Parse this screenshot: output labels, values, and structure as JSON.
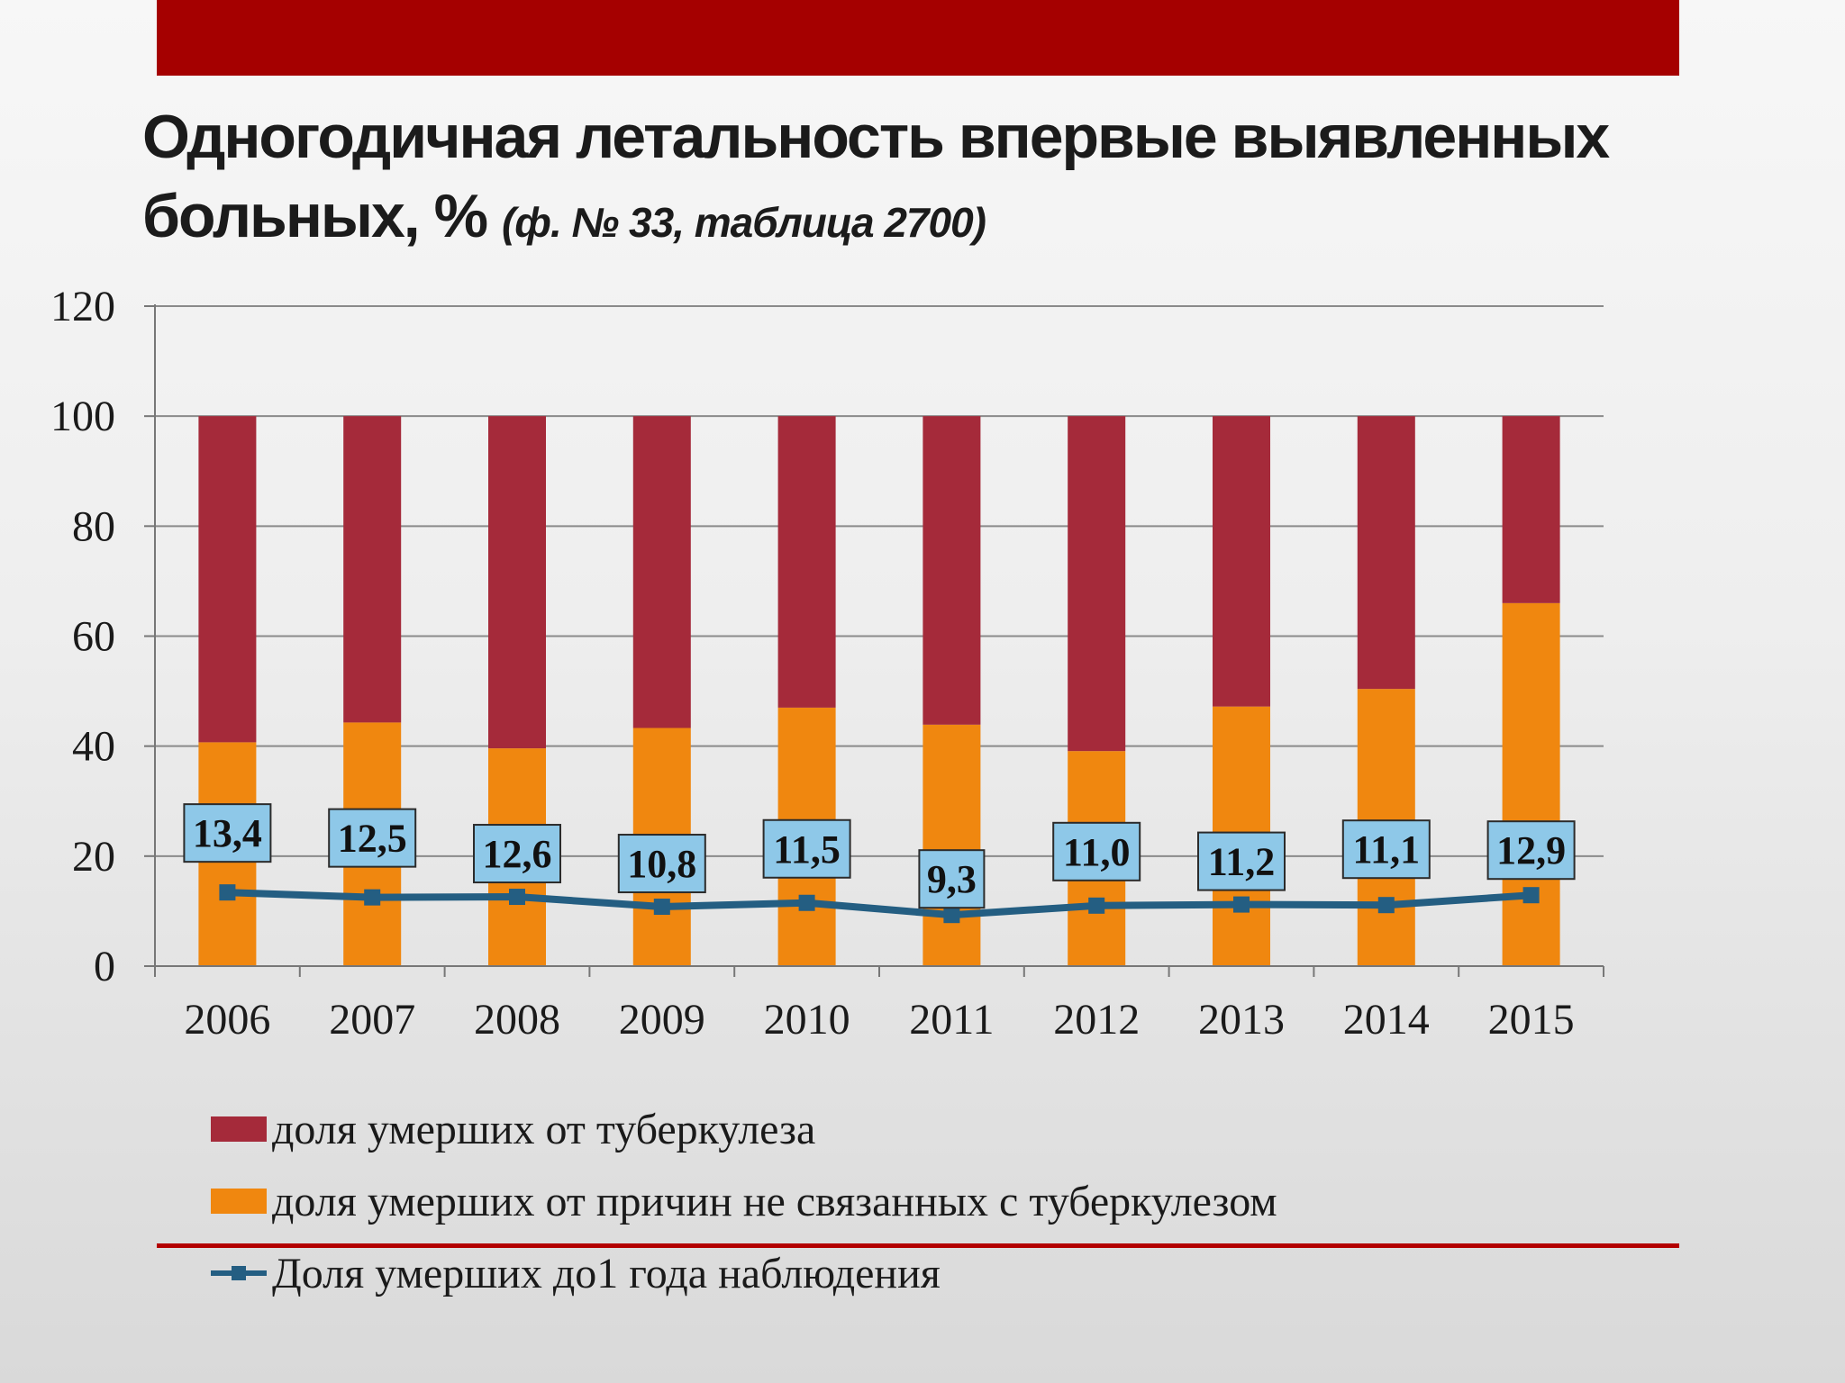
{
  "slide": {
    "title_main": "Одногодичная летальность впервые выявленных больных, %",
    "title_sub": "(ф. № 33, таблица 2700)"
  },
  "colors": {
    "header_bar": "#a50000",
    "divider": "#b30000",
    "tb_deaths": "#a52a3a",
    "other_deaths": "#f0870f",
    "line": "#245e82",
    "label_box": "#8ec8e8"
  },
  "chart_data": {
    "type": "bar",
    "stacked": true,
    "categories": [
      "2006",
      "2007",
      "2008",
      "2009",
      "2010",
      "2011",
      "2012",
      "2013",
      "2014",
      "2015"
    ],
    "series": [
      {
        "name": "доля умерших от причин не связанных с туберкулезом",
        "type": "bar",
        "color": "#f0870f",
        "values": [
          40.7,
          44.3,
          39.6,
          43.3,
          47.0,
          43.9,
          39.1,
          47.2,
          50.4,
          66.0
        ]
      },
      {
        "name": "доля умерших от туберкулеза",
        "type": "bar",
        "color": "#a52a3a",
        "values": [
          59.3,
          55.7,
          60.4,
          56.7,
          53.0,
          56.1,
          60.9,
          52.8,
          49.6,
          34.0
        ]
      },
      {
        "name": "Доля умерших до1 года наблюдения",
        "type": "line",
        "color": "#245e82",
        "values": [
          13.4,
          12.5,
          12.6,
          10.8,
          11.5,
          9.3,
          11.0,
          11.2,
          11.1,
          12.9
        ],
        "labels": [
          "13,4",
          "12,5",
          "12,6",
          "10,8",
          "11,5",
          "9,3",
          "11,0",
          "11,2",
          "11,1",
          "12,9"
        ]
      }
    ],
    "ylim": [
      0,
      120
    ],
    "yticks": [
      "0",
      "20",
      "40",
      "60",
      "80",
      "100",
      "120"
    ],
    "grid": true,
    "legend_position": "bottom-left",
    "legend": [
      {
        "label": "доля умерших от туберкулеза",
        "kind": "bar",
        "color": "#a52a3a"
      },
      {
        "label": "доля умерших от причин не связанных с туберкулезом",
        "kind": "bar",
        "color": "#f0870f"
      },
      {
        "label": "Доля умерших до1 года наблюдения",
        "kind": "line",
        "color": "#245e82"
      }
    ]
  }
}
